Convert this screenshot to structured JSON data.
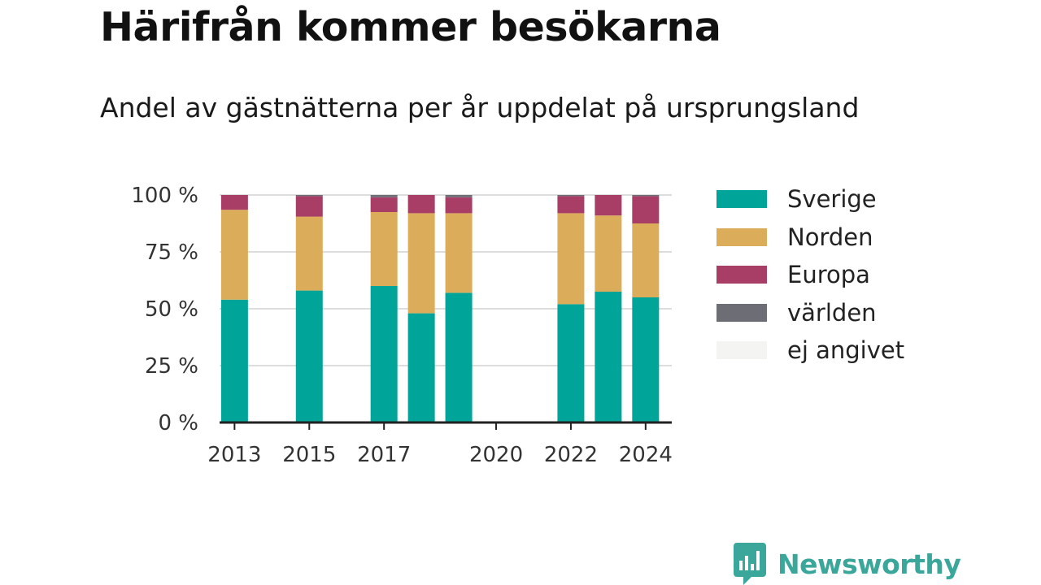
{
  "title": "Härifrån kommer besökarna",
  "subtitle": "Andel av gästnätterna per år uppdelat på ursprungsland",
  "brand": "Newsworthy",
  "colors": {
    "Sverige": "#00a499",
    "Norden": "#dbad5b",
    "Europa": "#a83e66",
    "världen": "#6d6d75",
    "ej angivet": "#f4f4f2",
    "grid": "#dddddd",
    "axis": "#222222",
    "brand": "#3aa79a"
  },
  "chart_data": {
    "type": "bar",
    "stacked": true,
    "categories": [
      2013,
      2015,
      2017,
      2018,
      2019,
      2022,
      2023,
      2024
    ],
    "xticks": [
      2013,
      2015,
      2017,
      2020,
      2022,
      2024
    ],
    "xlim": [
      2012.6,
      2024.7
    ],
    "ylim": [
      0,
      100
    ],
    "yticks": [
      0,
      25,
      50,
      75,
      100
    ],
    "ytick_labels": [
      "0 %",
      "25 %",
      "50 %",
      "75 %",
      "100 %"
    ],
    "grid": true,
    "legend_position": "right",
    "series": [
      {
        "name": "Sverige",
        "values": [
          54,
          58,
          60,
          48,
          57,
          52,
          57.5,
          55
        ]
      },
      {
        "name": "Norden",
        "values": [
          39.5,
          32.5,
          32.5,
          44,
          35,
          40,
          33.5,
          32.5
        ]
      },
      {
        "name": "Europa",
        "values": [
          6.5,
          9,
          6.5,
          8,
          7,
          7.5,
          9,
          12
        ]
      },
      {
        "name": "världen",
        "values": [
          0,
          0.5,
          1,
          0,
          1,
          0.5,
          0,
          0.5
        ]
      },
      {
        "name": "ej angivet",
        "values": [
          0,
          0,
          0,
          0,
          0,
          0,
          0,
          0
        ]
      }
    ]
  }
}
